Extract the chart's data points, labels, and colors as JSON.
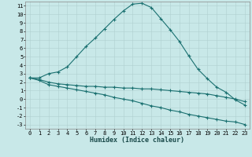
{
  "xlabel": "Humidex (Indice chaleur)",
  "bg_color": "#c8e8e8",
  "grid_color": "#b0d0d0",
  "line_color": "#1a7070",
  "xlim": [
    -0.5,
    23.5
  ],
  "ylim": [
    -3.5,
    11.5
  ],
  "xticks": [
    0,
    1,
    2,
    3,
    4,
    5,
    6,
    7,
    8,
    9,
    10,
    11,
    12,
    13,
    14,
    15,
    16,
    17,
    18,
    19,
    20,
    21,
    22,
    23
  ],
  "yticks": [
    -3,
    -2,
    -1,
    0,
    1,
    2,
    3,
    4,
    5,
    6,
    7,
    8,
    9,
    10,
    11
  ],
  "line1_x": [
    0,
    1,
    2,
    3,
    4,
    5,
    6,
    7,
    8,
    9,
    10,
    11,
    12,
    13,
    14,
    15,
    16,
    17,
    18,
    19,
    20,
    21,
    22,
    23
  ],
  "line1_y": [
    2.5,
    2.5,
    3.0,
    3.2,
    3.8,
    5.0,
    6.2,
    7.2,
    8.3,
    9.4,
    10.4,
    11.2,
    11.3,
    10.8,
    9.5,
    8.2,
    6.8,
    5.1,
    3.5,
    2.4,
    1.4,
    0.8,
    -0.1,
    -0.7
  ],
  "line2_x": [
    0,
    1,
    2,
    3,
    4,
    5,
    6,
    7,
    8,
    9,
    10,
    11,
    12,
    13,
    14,
    15,
    16,
    17,
    18,
    19,
    20,
    21,
    22,
    23
  ],
  "line2_y": [
    2.5,
    2.3,
    2.0,
    1.8,
    1.7,
    1.6,
    1.5,
    1.5,
    1.4,
    1.4,
    1.3,
    1.3,
    1.2,
    1.2,
    1.1,
    1.0,
    0.9,
    0.8,
    0.7,
    0.6,
    0.4,
    0.2,
    0.0,
    -0.3
  ],
  "line3_x": [
    0,
    1,
    2,
    3,
    4,
    5,
    6,
    7,
    8,
    9,
    10,
    11,
    12,
    13,
    14,
    15,
    16,
    17,
    18,
    19,
    20,
    21,
    22,
    23
  ],
  "line3_y": [
    2.5,
    2.2,
    1.7,
    1.5,
    1.3,
    1.1,
    0.9,
    0.7,
    0.5,
    0.2,
    0.0,
    -0.2,
    -0.5,
    -0.8,
    -1.0,
    -1.3,
    -1.5,
    -1.8,
    -2.0,
    -2.2,
    -2.4,
    -2.6,
    -2.7,
    -3.0
  ],
  "xlabel_fontsize": 6,
  "tick_fontsize": 5,
  "linewidth": 0.8,
  "markersize": 2.5
}
